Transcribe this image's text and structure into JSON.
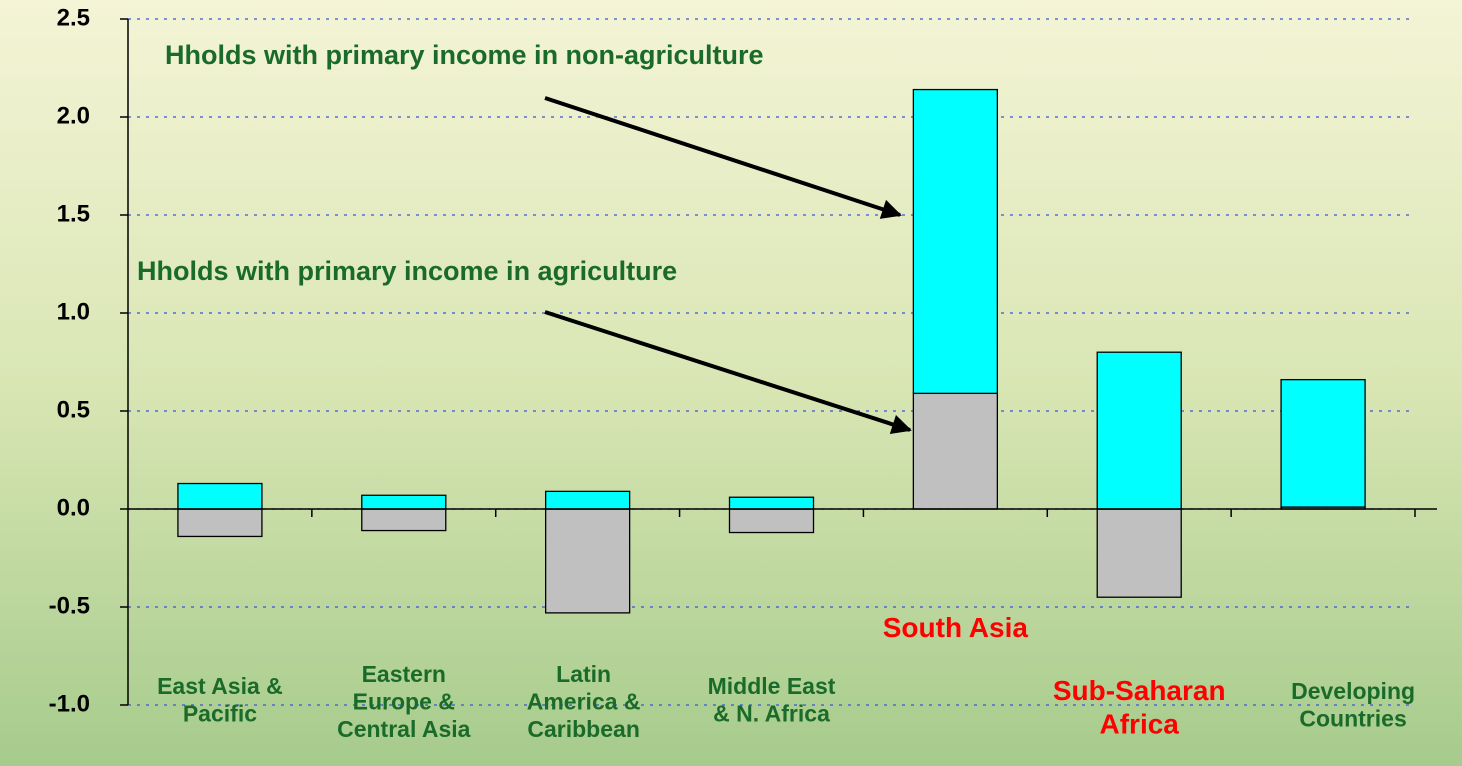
{
  "chart_data": {
    "type": "stacked_bar",
    "categories": [
      "East Asia &\nPacific",
      "Eastern\nEurope &\nCentral Asia",
      "Latin\nAmerica &\nCaribbean",
      "Middle East\n& N. Africa",
      "South Asia",
      "Sub-Saharan\nAfrica",
      "Developing\nCountries"
    ],
    "category_label_colors": [
      "#1a6b2a",
      "#1a6b2a",
      "#1a6b2a",
      "#1a6b2a",
      "#ff0000",
      "#ff0000",
      "#1a6b2a"
    ],
    "series": [
      {
        "name": "Hholds with primary income in agriculture",
        "color": "#c0c0c0",
        "values": [
          -0.14,
          -0.11,
          -0.53,
          -0.12,
          0.59,
          -0.45,
          0.01
        ]
      },
      {
        "name": "Hholds with primary income in non-agriculture",
        "color": "#00ffff",
        "values": [
          0.13,
          0.07,
          0.09,
          0.06,
          1.55,
          0.8,
          0.65
        ]
      }
    ],
    "ylim": [
      -1.0,
      2.5
    ],
    "yticks": [
      {
        "value": -1.0,
        "label": "-1.0"
      },
      -0.5,
      {
        "value": 0.0,
        "label": "0.0"
      },
      0.5,
      {
        "value": 1.0,
        "label": "1.0"
      },
      1.5,
      {
        "value": 2.0,
        "label": "2.0"
      },
      2.5
    ],
    "grid": true
  }
}
